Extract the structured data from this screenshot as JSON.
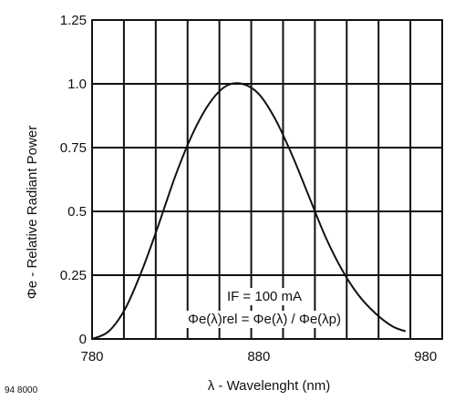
{
  "chart_data": {
    "type": "line",
    "xlabel": "λ - Wavelenght (nm)",
    "ylabel": "Φe - Relative Radiant Power",
    "figure_id": "94 8000",
    "xlim": [
      780,
      990
    ],
    "ylim": [
      0,
      1.25
    ],
    "x_ticks": [
      "780",
      "880",
      "980"
    ],
    "y_ticks": [
      "0",
      "0.25",
      "0.5",
      "0.75",
      "1.0",
      "1.25"
    ],
    "grid": true,
    "annotations": [
      "IF = 100 mA",
      "Φe(λ)rel = Φe(λ) / Φe(λp)"
    ],
    "series": [
      {
        "x": [
          780,
          790,
          800,
          810,
          820,
          830,
          840,
          850,
          860,
          870,
          880,
          890,
          900,
          910,
          920,
          930,
          940,
          950,
          960,
          968
        ],
        "y": [
          0.0,
          0.03,
          0.12,
          0.27,
          0.45,
          0.64,
          0.8,
          0.92,
          0.99,
          1.0,
          0.96,
          0.86,
          0.72,
          0.56,
          0.4,
          0.27,
          0.17,
          0.1,
          0.05,
          0.03
        ]
      }
    ]
  }
}
